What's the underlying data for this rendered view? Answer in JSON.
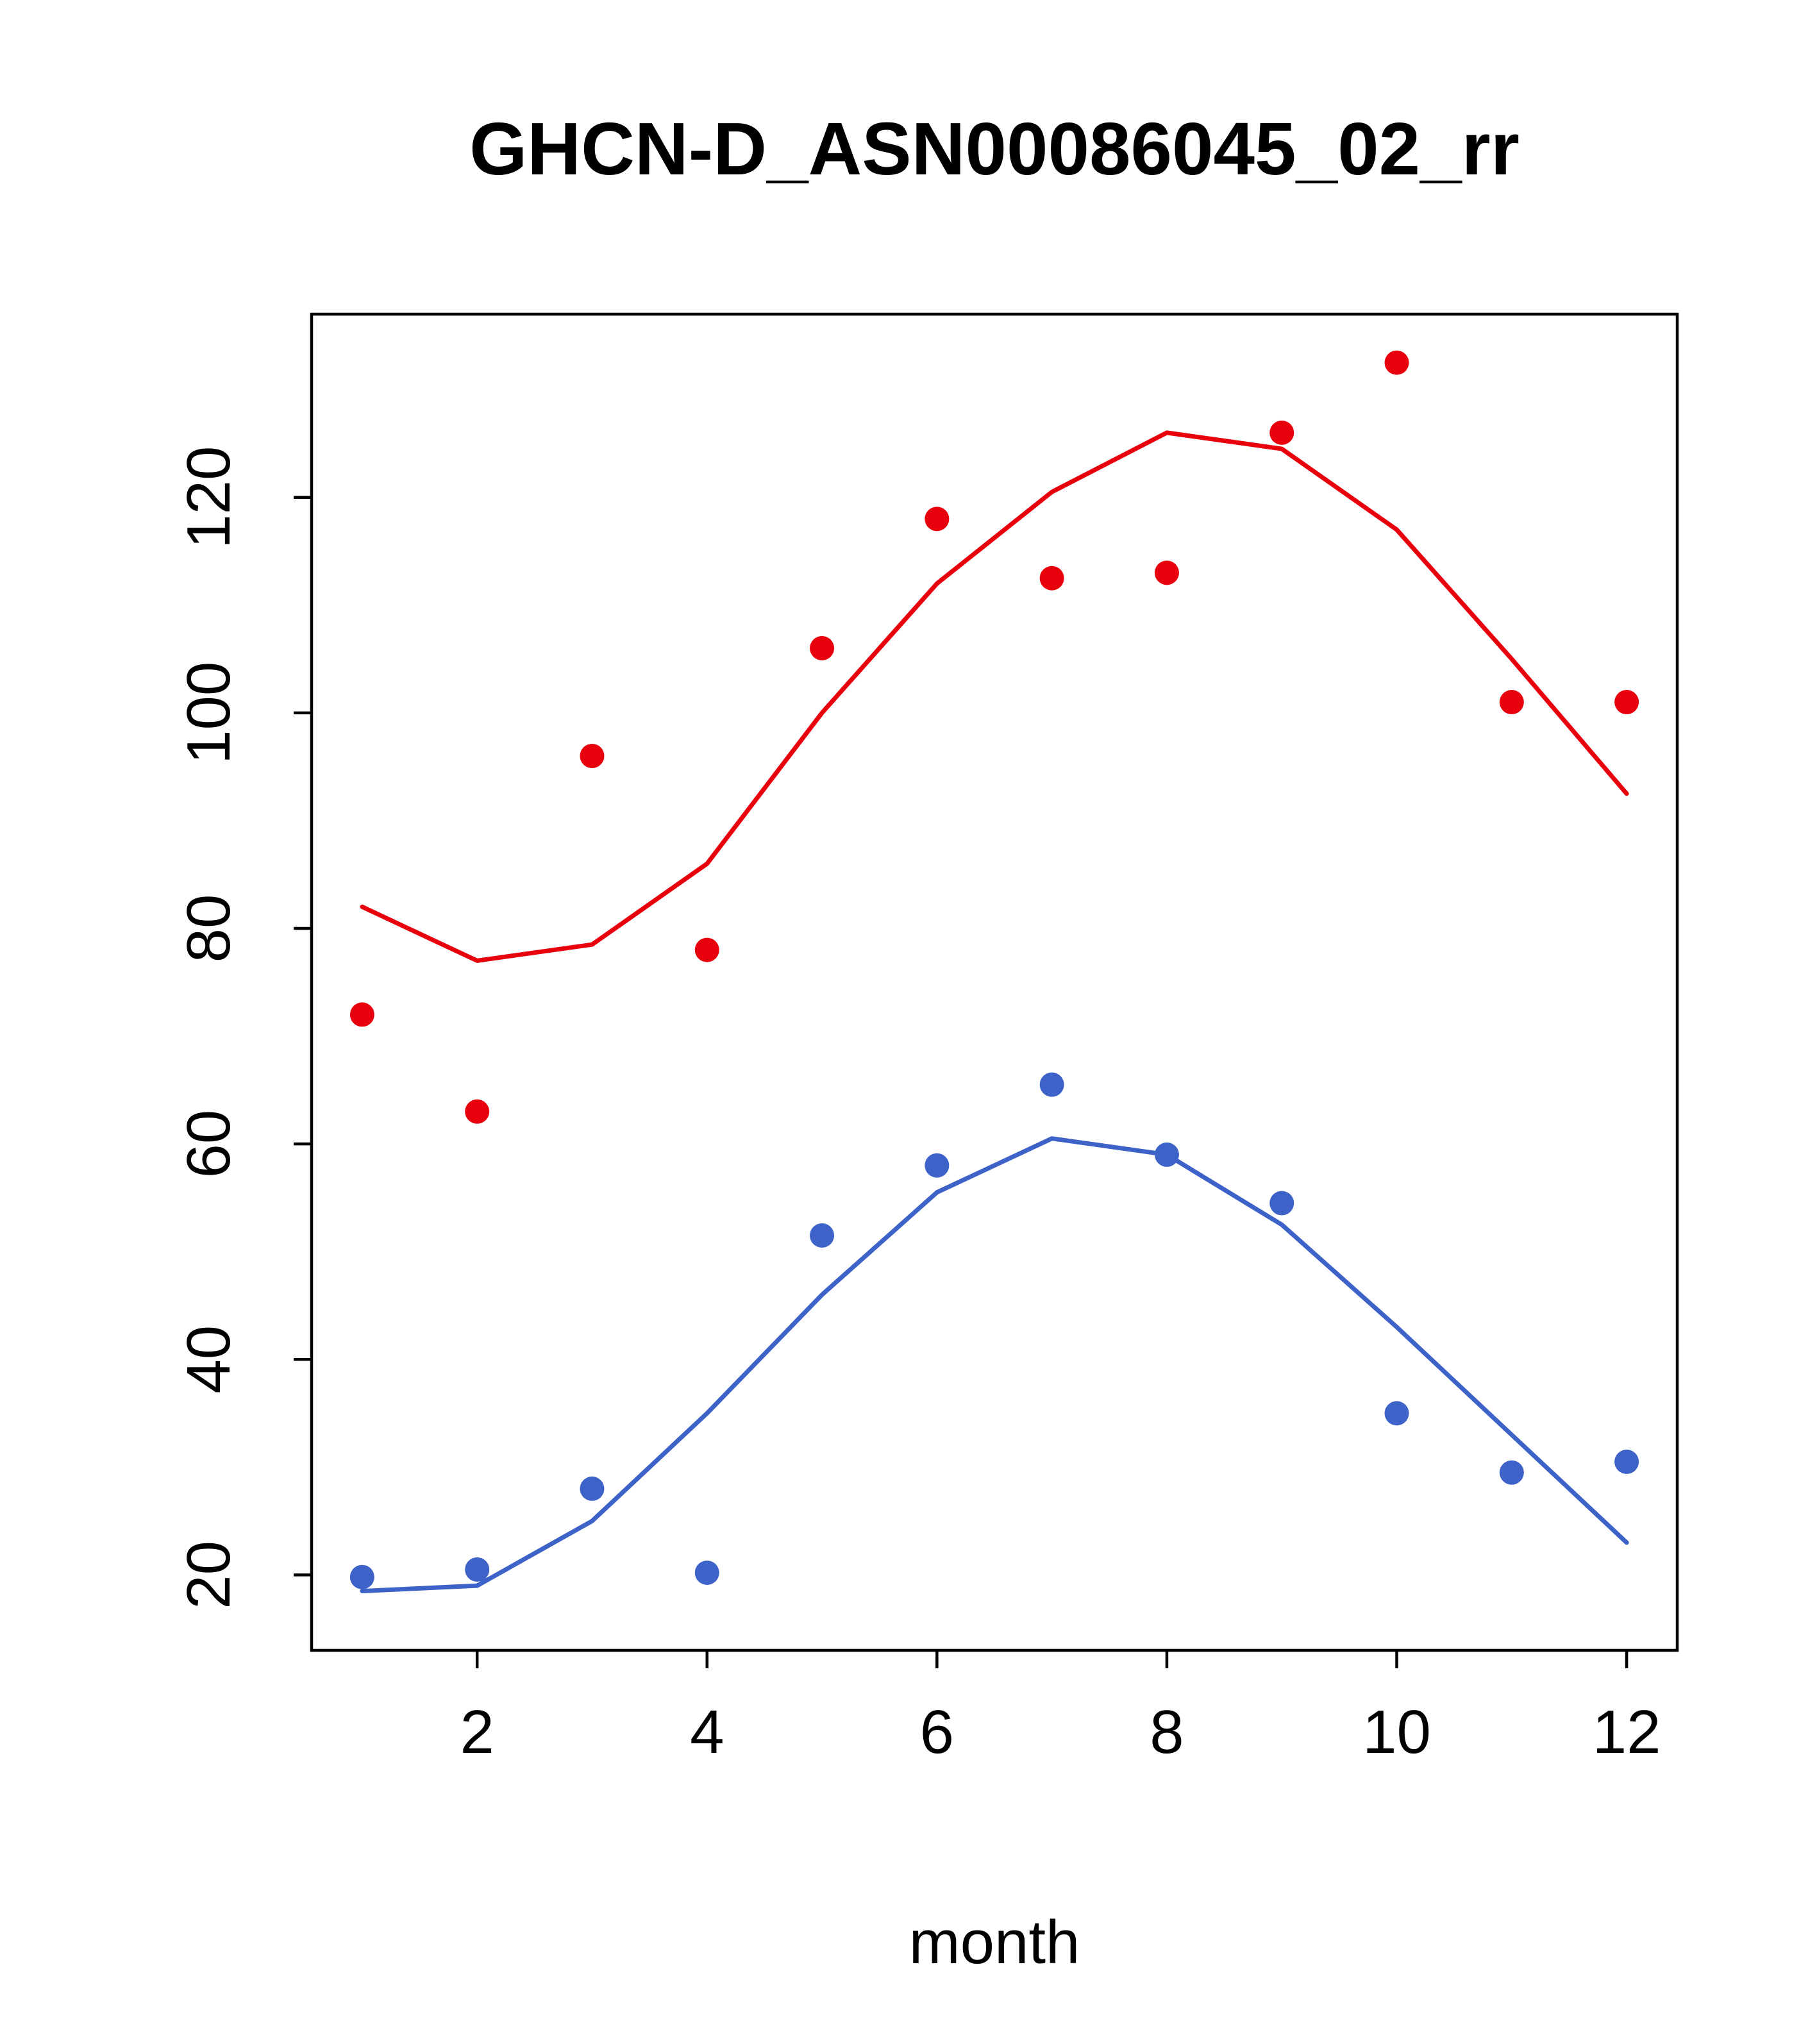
{
  "chart_data": {
    "type": "scatter",
    "title": "GHCN-D_ASN00086045_02_rr",
    "xlabel": "month",
    "ylabel": "",
    "xlim": [
      0.56,
      12.44
    ],
    "ylim": [
      13,
      137
    ],
    "xticks": [
      2,
      4,
      6,
      8,
      10,
      12
    ],
    "yticks": [
      20,
      40,
      60,
      80,
      100,
      120
    ],
    "grid": false,
    "legend": "none",
    "x": [
      1,
      2,
      3,
      4,
      5,
      6,
      7,
      8,
      9,
      10,
      11,
      12
    ],
    "series": [
      {
        "name": "red-points",
        "kind": "points",
        "color": "#e8000d",
        "values": [
          72,
          63,
          96,
          78,
          106,
          118,
          112.5,
          113,
          126,
          132.5,
          101,
          101
        ]
      },
      {
        "name": "red-smooth-line",
        "kind": "line",
        "color": "#e8000d",
        "values": [
          82,
          77,
          78.5,
          86,
          100,
          112,
          120.5,
          126,
          124.5,
          117,
          105,
          92.5
        ]
      },
      {
        "name": "blue-points",
        "kind": "points",
        "color": "#3e63c8",
        "values": [
          19.8,
          20.5,
          28,
          20.2,
          51.5,
          58,
          65.5,
          59,
          54.5,
          35,
          29.5,
          30.5
        ]
      },
      {
        "name": "blue-smooth-line",
        "kind": "line",
        "color": "#3e63c8",
        "values": [
          18.5,
          19,
          25,
          35,
          46,
          55.5,
          60.5,
          59,
          52.5,
          43,
          33,
          23
        ]
      }
    ]
  }
}
